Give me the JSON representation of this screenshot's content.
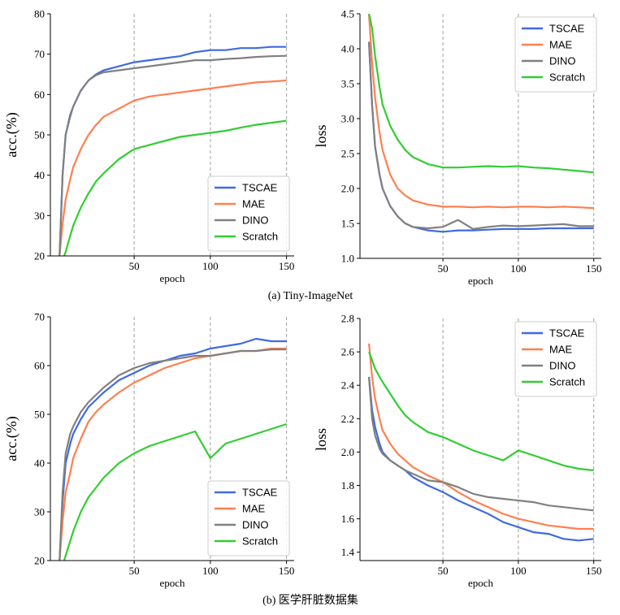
{
  "captions": {
    "a": "(a) Tiny-ImageNet",
    "b": "(b) 医学肝脏数据集"
  },
  "colors": {
    "TSCAE": "#4169E1",
    "MAE": "#FF7F50",
    "DINO": "#808080",
    "Scratch": "#32CD32"
  },
  "chart_data": [
    {
      "id": "tiny_acc",
      "type": "line",
      "title": "",
      "xlabel": "epoch",
      "ylabel": "acc.(%)",
      "xlim": [
        -5,
        155
      ],
      "ylim": [
        20,
        80
      ],
      "xticks": [
        50,
        100,
        150
      ],
      "yticks": [
        20,
        30,
        40,
        50,
        60,
        70,
        80
      ],
      "grid": "vertical-dashed",
      "legend": "bottom-right",
      "x": [
        1,
        3,
        5,
        8,
        10,
        15,
        20,
        25,
        30,
        40,
        50,
        60,
        70,
        80,
        90,
        100,
        110,
        120,
        130,
        140,
        150
      ],
      "series": [
        {
          "name": "TSCAE",
          "values": [
            20,
            40,
            50,
            55,
            57,
            61,
            63.5,
            65,
            66,
            67,
            68,
            68.5,
            69,
            69.5,
            70.5,
            71,
            71,
            71.5,
            71.5,
            71.8,
            71.8
          ]
        },
        {
          "name": "MAE",
          "values": [
            20,
            28,
            34,
            39,
            42,
            46.5,
            50,
            52.5,
            54.5,
            56.5,
            58.5,
            59.5,
            60,
            60.5,
            61,
            61.5,
            62,
            62.5,
            63,
            63.2,
            63.5
          ]
        },
        {
          "name": "DINO",
          "values": [
            20,
            40,
            50,
            54.5,
            57,
            61,
            63.5,
            64.8,
            65.5,
            66,
            66.5,
            67,
            67.5,
            68,
            68.5,
            68.5,
            68.8,
            69,
            69.3,
            69.5,
            69.6
          ]
        },
        {
          "name": "Scratch",
          "values": [
            17,
            19,
            21,
            25,
            27.5,
            32,
            35.5,
            38.5,
            40.5,
            44,
            46.5,
            47.5,
            48.5,
            49.5,
            50,
            50.5,
            51,
            51.8,
            52.5,
            53,
            53.5
          ]
        }
      ]
    },
    {
      "id": "tiny_loss",
      "type": "line",
      "title": "",
      "xlabel": "epoch",
      "ylabel": "loss",
      "xlim": [
        -5,
        155
      ],
      "ylim": [
        1.0,
        4.5
      ],
      "xticks": [
        50,
        100,
        150
      ],
      "yticks": [
        1.0,
        1.5,
        2.0,
        2.5,
        3.0,
        3.5,
        4.0,
        4.5
      ],
      "grid": "vertical-dashed",
      "legend": "top-right",
      "x": [
        1,
        3,
        5,
        8,
        10,
        15,
        20,
        25,
        30,
        40,
        50,
        60,
        70,
        80,
        90,
        100,
        110,
        120,
        130,
        140,
        150
      ],
      "series": [
        {
          "name": "TSCAE",
          "values": [
            4.1,
            3.2,
            2.6,
            2.2,
            2.0,
            1.75,
            1.6,
            1.5,
            1.45,
            1.4,
            1.38,
            1.4,
            1.4,
            1.41,
            1.42,
            1.42,
            1.42,
            1.43,
            1.43,
            1.43,
            1.43
          ]
        },
        {
          "name": "MAE",
          "values": [
            4.5,
            3.8,
            3.3,
            2.8,
            2.55,
            2.2,
            2.0,
            1.9,
            1.83,
            1.77,
            1.74,
            1.74,
            1.73,
            1.74,
            1.73,
            1.74,
            1.74,
            1.73,
            1.74,
            1.73,
            1.72
          ]
        },
        {
          "name": "DINO",
          "values": [
            4.1,
            3.2,
            2.6,
            2.2,
            2.0,
            1.75,
            1.6,
            1.5,
            1.45,
            1.43,
            1.45,
            1.55,
            1.42,
            1.45,
            1.47,
            1.46,
            1.47,
            1.48,
            1.49,
            1.46,
            1.46
          ]
        },
        {
          "name": "Scratch",
          "values": [
            4.5,
            4.3,
            3.9,
            3.45,
            3.2,
            2.9,
            2.7,
            2.55,
            2.45,
            2.35,
            2.3,
            2.3,
            2.31,
            2.32,
            2.31,
            2.32,
            2.3,
            2.29,
            2.27,
            2.25,
            2.23
          ]
        }
      ]
    },
    {
      "id": "liver_acc",
      "type": "line",
      "title": "",
      "xlabel": "epoch",
      "ylabel": "acc.(%)",
      "xlim": [
        -5,
        155
      ],
      "ylim": [
        20,
        70
      ],
      "xticks": [
        50,
        100,
        150
      ],
      "yticks": [
        20,
        30,
        40,
        50,
        60,
        70
      ],
      "grid": "vertical-dashed",
      "legend": "bottom-right",
      "x": [
        1,
        3,
        5,
        8,
        10,
        15,
        20,
        25,
        30,
        40,
        50,
        60,
        70,
        80,
        90,
        100,
        110,
        120,
        130,
        140,
        150
      ],
      "series": [
        {
          "name": "TSCAE",
          "values": [
            20,
            32,
            40,
            44,
            46,
            49,
            51.5,
            53,
            54.5,
            57,
            58.5,
            60,
            61,
            62,
            62.5,
            63.5,
            64,
            64.5,
            65.5,
            65,
            65
          ]
        },
        {
          "name": "MAE",
          "values": [
            20,
            28,
            34,
            38,
            41,
            45,
            48.5,
            50.5,
            52,
            54.5,
            56.5,
            58,
            59.5,
            60.5,
            61.5,
            62,
            62.5,
            63,
            63,
            63.5,
            63.5
          ]
        },
        {
          "name": "DINO",
          "values": [
            20,
            34,
            42,
            46,
            47.5,
            50.5,
            52.5,
            54,
            55.5,
            58,
            59.5,
            60.5,
            61,
            61.5,
            62,
            62,
            62.5,
            63,
            63,
            63.3,
            63.3
          ]
        },
        {
          "name": "Scratch",
          "values": [
            20,
            19,
            21,
            24,
            26,
            30,
            33,
            35,
            37,
            40,
            42,
            43.5,
            44.5,
            45.5,
            46.5,
            41,
            44,
            45,
            46,
            47,
            48
          ]
        }
      ]
    },
    {
      "id": "liver_loss",
      "type": "line",
      "title": "",
      "xlabel": "epoch",
      "ylabel": "loss",
      "xlim": [
        -5,
        155
      ],
      "ylim": [
        1.35,
        2.8
      ],
      "xticks": [
        50,
        100,
        150
      ],
      "yticks": [
        1.4,
        1.6,
        1.8,
        2.0,
        2.2,
        2.4,
        2.6,
        2.8
      ],
      "grid": "vertical-dashed",
      "legend": "top-right",
      "x": [
        1,
        3,
        5,
        8,
        10,
        15,
        20,
        25,
        30,
        40,
        50,
        60,
        70,
        80,
        90,
        100,
        110,
        120,
        130,
        140,
        150
      ],
      "series": [
        {
          "name": "TSCAE",
          "values": [
            2.45,
            2.25,
            2.15,
            2.05,
            2.0,
            1.95,
            1.92,
            1.89,
            1.85,
            1.8,
            1.76,
            1.71,
            1.67,
            1.63,
            1.58,
            1.55,
            1.52,
            1.51,
            1.48,
            1.47,
            1.48
          ]
        },
        {
          "name": "MAE",
          "values": [
            2.65,
            2.45,
            2.32,
            2.2,
            2.13,
            2.05,
            1.99,
            1.95,
            1.91,
            1.86,
            1.82,
            1.76,
            1.71,
            1.67,
            1.63,
            1.6,
            1.58,
            1.56,
            1.55,
            1.54,
            1.54
          ]
        },
        {
          "name": "DINO",
          "values": [
            2.45,
            2.2,
            2.1,
            2.02,
            1.99,
            1.95,
            1.92,
            1.89,
            1.87,
            1.83,
            1.82,
            1.79,
            1.75,
            1.73,
            1.72,
            1.71,
            1.7,
            1.68,
            1.67,
            1.66,
            1.65
          ]
        },
        {
          "name": "Scratch",
          "values": [
            2.6,
            2.55,
            2.5,
            2.45,
            2.42,
            2.35,
            2.28,
            2.22,
            2.18,
            2.12,
            2.09,
            2.05,
            2.01,
            1.98,
            1.95,
            2.01,
            1.98,
            1.95,
            1.92,
            1.9,
            1.89
          ]
        }
      ]
    }
  ]
}
